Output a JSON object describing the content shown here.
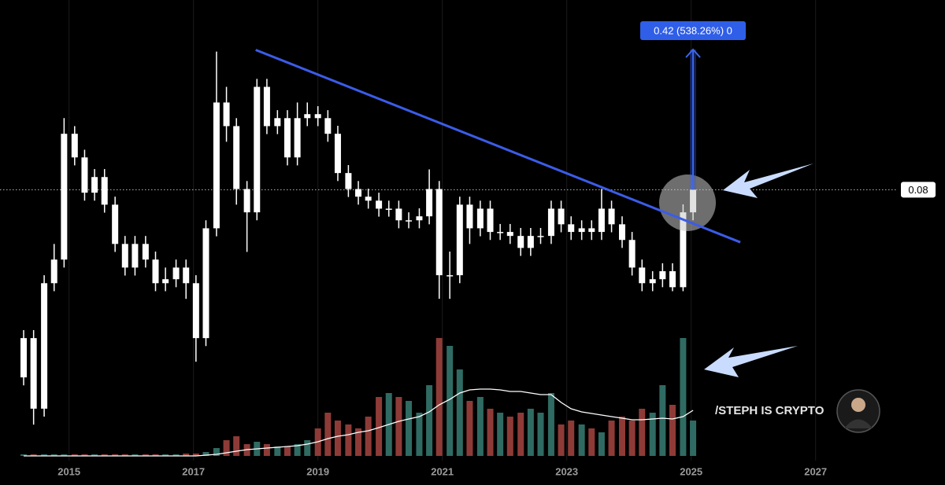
{
  "chart_data": {
    "type": "candlestick",
    "color": "#ffffff",
    "x": [
      2014.27,
      2014.43,
      2014.6,
      2014.76,
      2014.92,
      2015.09,
      2015.25,
      2015.41,
      2015.57,
      2015.74,
      2015.9,
      2016.06,
      2016.23,
      2016.39,
      2016.55,
      2016.72,
      2016.88,
      2017.04,
      2017.2,
      2017.37,
      2017.53,
      2017.69,
      2017.86,
      2018.02,
      2018.18,
      2018.35,
      2018.51,
      2018.67,
      2018.83,
      2019.0,
      2019.16,
      2019.32,
      2019.49,
      2019.65,
      2019.81,
      2019.98,
      2020.14,
      2020.3,
      2020.46,
      2020.63,
      2020.79,
      2020.95,
      2021.12,
      2021.28,
      2021.44,
      2021.61,
      2021.77,
      2021.93,
      2022.09,
      2022.26,
      2022.42,
      2022.58,
      2022.75,
      2022.91,
      2023.07,
      2023.24,
      2023.4,
      2023.56,
      2023.72,
      2023.89,
      2024.05,
      2024.21,
      2024.38,
      2024.54,
      2024.7,
      2024.87,
      2025.03
    ],
    "open": [
      0.0236,
      0.0354,
      0.0142,
      0.0519,
      0.059,
      0.0968,
      0.0897,
      0.0791,
      0.0838,
      0.0755,
      0.0637,
      0.0566,
      0.0637,
      0.059,
      0.0519,
      0.0531,
      0.0566,
      0.0519,
      0.0354,
      0.0684,
      0.1062,
      0.0991,
      0.0802,
      0.0732,
      0.1109,
      0.0991,
      0.1015,
      0.0897,
      0.1015,
      0.1027,
      0.1015,
      0.0968,
      0.085,
      0.0802,
      0.0779,
      0.0767,
      0.0743,
      0.0743,
      0.0708,
      0.0708,
      0.072,
      0.0802,
      0.0543,
      0.0543,
      0.0755,
      0.0684,
      0.0743,
      0.0673,
      0.0673,
      0.0661,
      0.0625,
      0.0661,
      0.0661,
      0.0743,
      0.0696,
      0.0673,
      0.0684,
      0.0673,
      0.0743,
      0.0696,
      0.0649,
      0.0566,
      0.0519,
      0.0531,
      0.0555,
      0.0507,
      0.0732
    ],
    "high": [
      0.0378,
      0.0378,
      0.0543,
      0.0637,
      0.1015,
      0.0991,
      0.092,
      0.0862,
      0.0862,
      0.0779,
      0.0661,
      0.0661,
      0.0661,
      0.0614,
      0.0566,
      0.059,
      0.059,
      0.0543,
      0.0708,
      0.1215,
      0.1109,
      0.1015,
      0.0826,
      0.1133,
      0.1133,
      0.1039,
      0.1039,
      0.1062,
      0.1062,
      0.1051,
      0.1039,
      0.0992,
      0.0874,
      0.0826,
      0.0803,
      0.0791,
      0.0767,
      0.0767,
      0.0732,
      0.0744,
      0.0861,
      0.0826,
      0.0614,
      0.0779,
      0.0779,
      0.0767,
      0.0767,
      0.0697,
      0.0697,
      0.0685,
      0.0685,
      0.0685,
      0.0767,
      0.0767,
      0.072,
      0.0708,
      0.0708,
      0.0802,
      0.0767,
      0.072,
      0.0673,
      0.059,
      0.0555,
      0.0579,
      0.0579,
      0.0756,
      0.0826
    ],
    "low": [
      0.0212,
      0.0094,
      0.0118,
      0.0495,
      0.0566,
      0.0873,
      0.0767,
      0.0767,
      0.0731,
      0.0613,
      0.0542,
      0.0542,
      0.0566,
      0.0495,
      0.0495,
      0.0507,
      0.0472,
      0.0283,
      0.033,
      0.066,
      0.0944,
      0.0755,
      0.0613,
      0.0708,
      0.0967,
      0.0967,
      0.0873,
      0.0873,
      0.0991,
      0.0991,
      0.0944,
      0.0826,
      0.0778,
      0.0755,
      0.0743,
      0.0719,
      0.0719,
      0.0684,
      0.0684,
      0.0684,
      0.0696,
      0.0472,
      0.0472,
      0.0519,
      0.0637,
      0.066,
      0.0649,
      0.0649,
      0.0637,
      0.0601,
      0.0601,
      0.0637,
      0.0637,
      0.0672,
      0.0649,
      0.0649,
      0.0649,
      0.0649,
      0.0672,
      0.0625,
      0.0542,
      0.0495,
      0.0495,
      0.0507,
      0.0495,
      0.0495,
      0.0708
    ],
    "close": [
      0.0354,
      0.0142,
      0.0519,
      0.059,
      0.0968,
      0.0897,
      0.0791,
      0.0838,
      0.0755,
      0.0637,
      0.0566,
      0.0637,
      0.059,
      0.0519,
      0.0531,
      0.0566,
      0.0519,
      0.0354,
      0.0684,
      0.1062,
      0.0991,
      0.0802,
      0.0732,
      0.1109,
      0.0991,
      0.1015,
      0.0897,
      0.1015,
      0.1027,
      0.1015,
      0.0968,
      0.085,
      0.0802,
      0.0779,
      0.0767,
      0.0743,
      0.0743,
      0.0708,
      0.0708,
      0.072,
      0.0802,
      0.0543,
      0.0543,
      0.0755,
      0.0684,
      0.0743,
      0.0673,
      0.0673,
      0.0661,
      0.0625,
      0.0661,
      0.0661,
      0.0743,
      0.0696,
      0.0673,
      0.0684,
      0.0673,
      0.0743,
      0.0696,
      0.0649,
      0.0566,
      0.0519,
      0.0531,
      0.0555,
      0.0507,
      0.0732,
      0.08
    ],
    "volume": {
      "up_color": "#2f6b62",
      "down_color": "#8e3b37",
      "ma_color": "#ffffff",
      "ylim": [
        0,
        160
      ],
      "values": [
        2,
        2,
        2,
        2,
        2,
        2,
        2,
        2,
        2,
        2,
        2,
        2,
        2,
        2,
        2,
        2,
        3,
        3,
        5,
        10,
        20,
        25,
        15,
        18,
        15,
        12,
        12,
        15,
        20,
        35,
        55,
        45,
        40,
        35,
        50,
        75,
        80,
        75,
        70,
        55,
        90,
        150,
        140,
        110,
        70,
        75,
        60,
        55,
        50,
        55,
        60,
        55,
        80,
        40,
        45,
        40,
        35,
        30,
        45,
        50,
        45,
        60,
        55,
        90,
        65,
        150,
        45
      ],
      "ma": [
        0,
        0,
        0,
        0,
        0,
        0,
        0,
        0,
        0,
        0,
        0,
        0,
        0,
        0,
        0,
        0,
        0,
        0,
        1,
        2,
        4,
        6,
        8,
        9,
        10,
        11,
        12,
        13,
        15,
        18,
        22,
        25,
        27,
        30,
        32,
        36,
        40,
        44,
        47,
        50,
        56,
        65,
        72,
        80,
        84,
        85,
        85,
        84,
        82,
        82,
        80,
        78,
        78,
        68,
        60,
        56,
        54,
        52,
        50,
        48,
        46,
        46,
        47,
        48,
        47,
        50,
        58
      ]
    },
    "xlim": [
      2013.89,
      2029.08
    ],
    "ylim": [
      0,
      0.137
    ],
    "xticks": [
      2015,
      2017,
      2019,
      2021,
      2023,
      2025,
      2027
    ],
    "grid": true,
    "last_price": 0.08,
    "trendline": {
      "color": "#3b5ce8",
      "x": [
        2018.0,
        2025.79
      ],
      "y": [
        0.122,
        0.0642
      ]
    },
    "measure_label": "0.42 (538.26%) 0",
    "watermark": "/STEPH IS CRYPTO"
  }
}
